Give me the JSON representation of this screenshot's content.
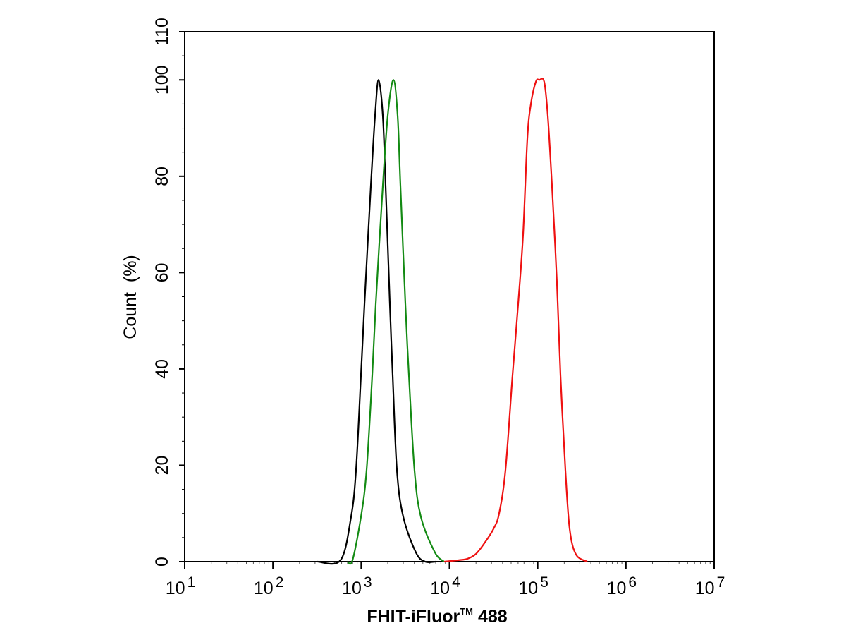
{
  "chart_data": {
    "type": "line",
    "title": "",
    "xlabel": "FHIT-iFluor™ 488",
    "xlabel_main": "FHIT-iFluor",
    "xlabel_tm": "TM",
    "xlabel_suffix": " 488",
    "ylabel": "Count  (%)",
    "x_scale": "log",
    "xlim": [
      10,
      10000000
    ],
    "ylim": [
      0,
      110
    ],
    "x_ticks": [
      {
        "base": "10",
        "exp": "1"
      },
      {
        "base": "10",
        "exp": "2"
      },
      {
        "base": "10",
        "exp": "3"
      },
      {
        "base": "10",
        "exp": "4"
      },
      {
        "base": "10",
        "exp": "5"
      },
      {
        "base": "10",
        "exp": "6"
      },
      {
        "base": "10",
        "exp": "7"
      }
    ],
    "y_ticks": [
      "0",
      "20",
      "40",
      "60",
      "80",
      "100",
      "110"
    ],
    "grid": false,
    "legend": "none",
    "series": [
      {
        "color": "#000000",
        "points": [
          [
            320,
            0
          ],
          [
            583,
            0.3
          ],
          [
            768,
            9.3
          ],
          [
            874,
            19
          ],
          [
            994,
            38.7
          ],
          [
            1090,
            53.5
          ],
          [
            1286,
            78
          ],
          [
            1436,
            92.6
          ],
          [
            1574,
            100
          ],
          [
            1758,
            92.6
          ],
          [
            1892,
            78
          ],
          [
            2113,
            53.5
          ],
          [
            2274,
            38.7
          ],
          [
            2540,
            19
          ],
          [
            2998,
            9.3
          ],
          [
            4172,
            1.9
          ],
          [
            5300,
            0
          ],
          [
            7000,
            0
          ]
        ]
      },
      {
        "color": "#138a13",
        "points": [
          [
            700,
            0
          ],
          [
            797,
            0.3
          ],
          [
            994,
            9.3
          ],
          [
            1151,
            19
          ],
          [
            1334,
            38.7
          ],
          [
            1463,
            53.5
          ],
          [
            1758,
            78
          ],
          [
            2000,
            92.6
          ],
          [
            2317,
            100
          ],
          [
            2587,
            92.6
          ],
          [
            2785,
            78
          ],
          [
            3168,
            53.5
          ],
          [
            3473,
            38.7
          ],
          [
            4018,
            19
          ],
          [
            4745,
            9.3
          ],
          [
            6855,
            1.9
          ],
          [
            8710,
            0
          ]
        ]
      },
      {
        "color": "#ee1111",
        "points": [
          [
            8710,
            0
          ],
          [
            12590,
            0.3
          ],
          [
            15990,
            0.6
          ],
          [
            19950,
            1.6
          ],
          [
            24850,
            3.8
          ],
          [
            31550,
            6.8
          ],
          [
            36560,
            10
          ],
          [
            43150,
            19
          ],
          [
            51880,
            38.7
          ],
          [
            60100,
            53.5
          ],
          [
            68380,
            68
          ],
          [
            76380,
            87.8
          ],
          [
            83750,
            95
          ],
          [
            95240,
            99.6
          ],
          [
            104400,
            100
          ],
          [
            118600,
            99.6
          ],
          [
            130100,
            92.6
          ],
          [
            145300,
            78
          ],
          [
            165200,
            58
          ],
          [
            181300,
            38.7
          ],
          [
            206100,
            19
          ],
          [
            230300,
            6.8
          ],
          [
            271600,
            1.5
          ],
          [
            364800,
            0
          ]
        ]
      }
    ]
  }
}
